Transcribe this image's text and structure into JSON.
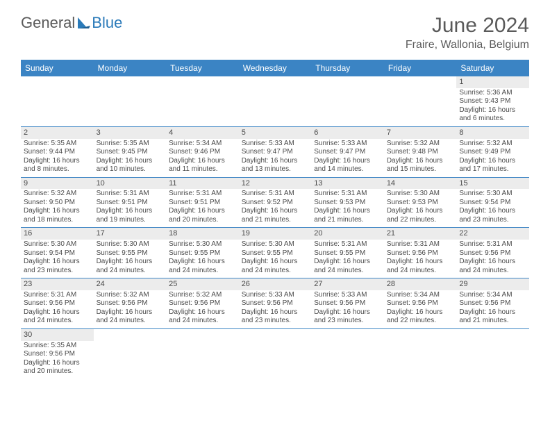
{
  "brand": {
    "part1": "General",
    "part2": "Blue"
  },
  "title": "June 2024",
  "location": "Fraire, Wallonia, Belgium",
  "colors": {
    "header_bg": "#3b84c4",
    "header_text": "#ffffff",
    "border": "#3b84c4",
    "shade": "#ececec",
    "text": "#4a4a4a",
    "title_text": "#5a5a5a",
    "brand_blue": "#2a7ab9"
  },
  "day_headers": [
    "Sunday",
    "Monday",
    "Tuesday",
    "Wednesday",
    "Thursday",
    "Friday",
    "Saturday"
  ],
  "weeks": [
    [
      null,
      null,
      null,
      null,
      null,
      null,
      {
        "n": "1",
        "sr": "Sunrise: 5:36 AM",
        "ss": "Sunset: 9:43 PM",
        "d1": "Daylight: 16 hours",
        "d2": "and 6 minutes."
      }
    ],
    [
      {
        "n": "2",
        "sr": "Sunrise: 5:35 AM",
        "ss": "Sunset: 9:44 PM",
        "d1": "Daylight: 16 hours",
        "d2": "and 8 minutes."
      },
      {
        "n": "3",
        "sr": "Sunrise: 5:35 AM",
        "ss": "Sunset: 9:45 PM",
        "d1": "Daylight: 16 hours",
        "d2": "and 10 minutes."
      },
      {
        "n": "4",
        "sr": "Sunrise: 5:34 AM",
        "ss": "Sunset: 9:46 PM",
        "d1": "Daylight: 16 hours",
        "d2": "and 11 minutes."
      },
      {
        "n": "5",
        "sr": "Sunrise: 5:33 AM",
        "ss": "Sunset: 9:47 PM",
        "d1": "Daylight: 16 hours",
        "d2": "and 13 minutes."
      },
      {
        "n": "6",
        "sr": "Sunrise: 5:33 AM",
        "ss": "Sunset: 9:47 PM",
        "d1": "Daylight: 16 hours",
        "d2": "and 14 minutes."
      },
      {
        "n": "7",
        "sr": "Sunrise: 5:32 AM",
        "ss": "Sunset: 9:48 PM",
        "d1": "Daylight: 16 hours",
        "d2": "and 15 minutes."
      },
      {
        "n": "8",
        "sr": "Sunrise: 5:32 AM",
        "ss": "Sunset: 9:49 PM",
        "d1": "Daylight: 16 hours",
        "d2": "and 17 minutes."
      }
    ],
    [
      {
        "n": "9",
        "sr": "Sunrise: 5:32 AM",
        "ss": "Sunset: 9:50 PM",
        "d1": "Daylight: 16 hours",
        "d2": "and 18 minutes."
      },
      {
        "n": "10",
        "sr": "Sunrise: 5:31 AM",
        "ss": "Sunset: 9:51 PM",
        "d1": "Daylight: 16 hours",
        "d2": "and 19 minutes."
      },
      {
        "n": "11",
        "sr": "Sunrise: 5:31 AM",
        "ss": "Sunset: 9:51 PM",
        "d1": "Daylight: 16 hours",
        "d2": "and 20 minutes."
      },
      {
        "n": "12",
        "sr": "Sunrise: 5:31 AM",
        "ss": "Sunset: 9:52 PM",
        "d1": "Daylight: 16 hours",
        "d2": "and 21 minutes."
      },
      {
        "n": "13",
        "sr": "Sunrise: 5:31 AM",
        "ss": "Sunset: 9:53 PM",
        "d1": "Daylight: 16 hours",
        "d2": "and 21 minutes."
      },
      {
        "n": "14",
        "sr": "Sunrise: 5:30 AM",
        "ss": "Sunset: 9:53 PM",
        "d1": "Daylight: 16 hours",
        "d2": "and 22 minutes."
      },
      {
        "n": "15",
        "sr": "Sunrise: 5:30 AM",
        "ss": "Sunset: 9:54 PM",
        "d1": "Daylight: 16 hours",
        "d2": "and 23 minutes."
      }
    ],
    [
      {
        "n": "16",
        "sr": "Sunrise: 5:30 AM",
        "ss": "Sunset: 9:54 PM",
        "d1": "Daylight: 16 hours",
        "d2": "and 23 minutes."
      },
      {
        "n": "17",
        "sr": "Sunrise: 5:30 AM",
        "ss": "Sunset: 9:55 PM",
        "d1": "Daylight: 16 hours",
        "d2": "and 24 minutes."
      },
      {
        "n": "18",
        "sr": "Sunrise: 5:30 AM",
        "ss": "Sunset: 9:55 PM",
        "d1": "Daylight: 16 hours",
        "d2": "and 24 minutes."
      },
      {
        "n": "19",
        "sr": "Sunrise: 5:30 AM",
        "ss": "Sunset: 9:55 PM",
        "d1": "Daylight: 16 hours",
        "d2": "and 24 minutes."
      },
      {
        "n": "20",
        "sr": "Sunrise: 5:31 AM",
        "ss": "Sunset: 9:55 PM",
        "d1": "Daylight: 16 hours",
        "d2": "and 24 minutes."
      },
      {
        "n": "21",
        "sr": "Sunrise: 5:31 AM",
        "ss": "Sunset: 9:56 PM",
        "d1": "Daylight: 16 hours",
        "d2": "and 24 minutes."
      },
      {
        "n": "22",
        "sr": "Sunrise: 5:31 AM",
        "ss": "Sunset: 9:56 PM",
        "d1": "Daylight: 16 hours",
        "d2": "and 24 minutes."
      }
    ],
    [
      {
        "n": "23",
        "sr": "Sunrise: 5:31 AM",
        "ss": "Sunset: 9:56 PM",
        "d1": "Daylight: 16 hours",
        "d2": "and 24 minutes."
      },
      {
        "n": "24",
        "sr": "Sunrise: 5:32 AM",
        "ss": "Sunset: 9:56 PM",
        "d1": "Daylight: 16 hours",
        "d2": "and 24 minutes."
      },
      {
        "n": "25",
        "sr": "Sunrise: 5:32 AM",
        "ss": "Sunset: 9:56 PM",
        "d1": "Daylight: 16 hours",
        "d2": "and 24 minutes."
      },
      {
        "n": "26",
        "sr": "Sunrise: 5:33 AM",
        "ss": "Sunset: 9:56 PM",
        "d1": "Daylight: 16 hours",
        "d2": "and 23 minutes."
      },
      {
        "n": "27",
        "sr": "Sunrise: 5:33 AM",
        "ss": "Sunset: 9:56 PM",
        "d1": "Daylight: 16 hours",
        "d2": "and 23 minutes."
      },
      {
        "n": "28",
        "sr": "Sunrise: 5:34 AM",
        "ss": "Sunset: 9:56 PM",
        "d1": "Daylight: 16 hours",
        "d2": "and 22 minutes."
      },
      {
        "n": "29",
        "sr": "Sunrise: 5:34 AM",
        "ss": "Sunset: 9:56 PM",
        "d1": "Daylight: 16 hours",
        "d2": "and 21 minutes."
      }
    ],
    [
      {
        "n": "30",
        "sr": "Sunrise: 5:35 AM",
        "ss": "Sunset: 9:56 PM",
        "d1": "Daylight: 16 hours",
        "d2": "and 20 minutes."
      },
      null,
      null,
      null,
      null,
      null,
      null
    ]
  ]
}
